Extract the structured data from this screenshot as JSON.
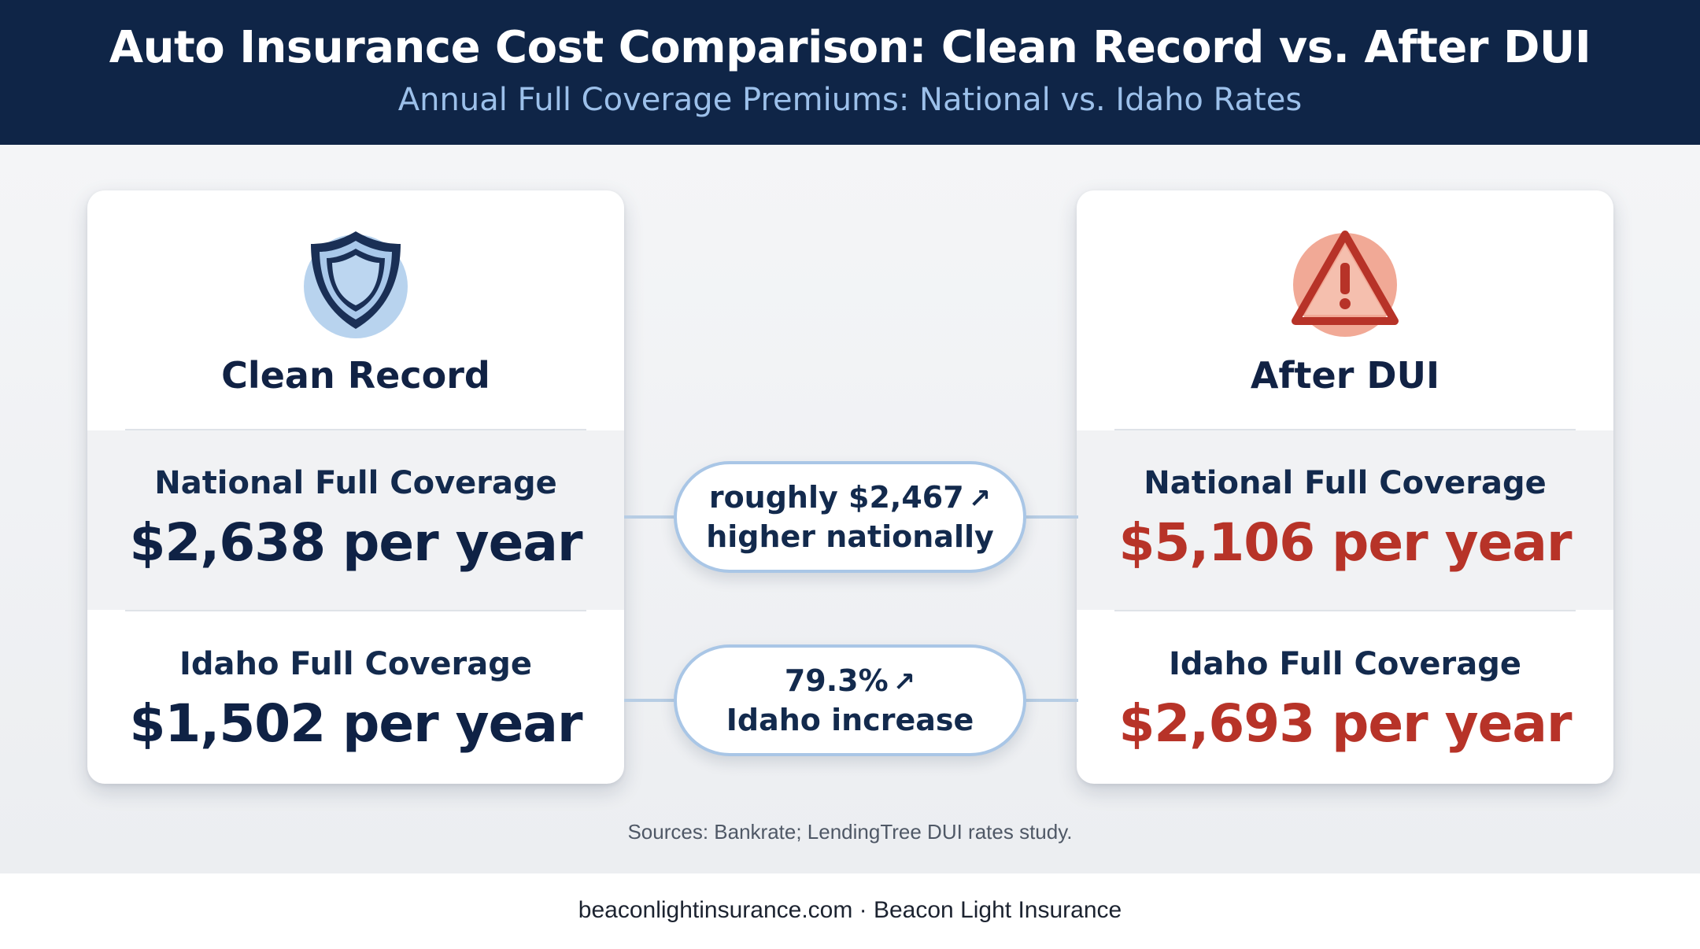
{
  "header": {
    "title": "Auto Insurance Cost Comparison: Clean Record vs. After DUI",
    "subtitle": "Annual Full Coverage Premiums: National vs. Idaho Rates"
  },
  "cards": {
    "left": {
      "icon": "shield-icon",
      "title": "Clean Record",
      "national_label": "National Full Coverage",
      "national_value": "$2,638 per year",
      "idaho_label": "Idaho Full Coverage",
      "idaho_value": "$1,502 per year"
    },
    "right": {
      "icon": "warning-icon",
      "title": "After DUI",
      "national_label": "National Full Coverage",
      "national_value": "$5,106 per year",
      "idaho_label": "Idaho Full Coverage",
      "idaho_value": "$2,693 per year"
    }
  },
  "comparisons": {
    "national_line1": "roughly $2,467",
    "national_line2": "higher nationally",
    "idaho_line1": "79.3%",
    "idaho_line2": "Idaho increase",
    "arrow": "↗"
  },
  "sources": "Sources: Bankrate; LendingTree DUI rates study.",
  "footer": "beaconlightinsurance.com · Beacon Light Insurance",
  "colors": {
    "header_bg": "#0f2547",
    "subtitle": "#9cc0ea",
    "clean_value": "#0f2245",
    "dui_value": "#b73328",
    "pill_border": "#a9c6e6"
  }
}
